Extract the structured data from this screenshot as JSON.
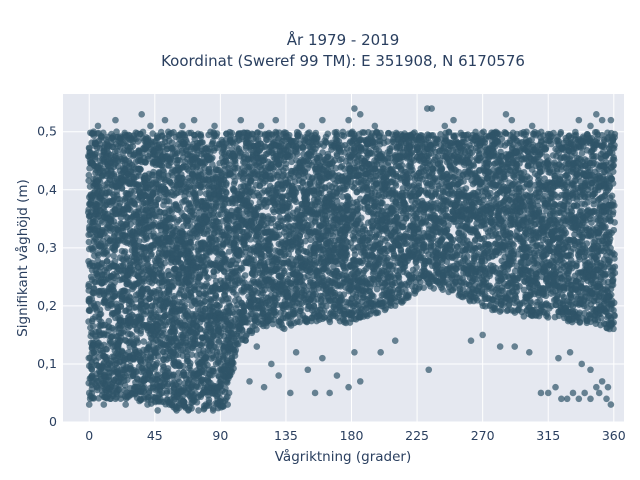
{
  "chart_data": {
    "type": "scatter",
    "title": "År 1979 - 2019",
    "subtitle": "Koordinat (Sweref 99 TM): E 351908, N 6170576",
    "xlabel": "Vågriktning (grader)",
    "ylabel": "Signifikant våghöjd (m)",
    "xlim": [
      -18,
      367
    ],
    "ylim": [
      0,
      0.565
    ],
    "xticks": [
      0,
      45,
      90,
      135,
      180,
      225,
      270,
      315,
      360
    ],
    "yticks": [
      0,
      0.1,
      0.2,
      0.3,
      0.4,
      0.5
    ],
    "ytick_labels": [
      "0",
      "0,1",
      "0,2",
      "0,3",
      "0,4",
      "0,5"
    ],
    "marker_color": "#2f5468",
    "marker_opacity": 0.7,
    "grid": true,
    "background": "#e5e8f0",
    "series": [
      {
        "envelope": {
          "x": [
            0,
            10,
            20,
            30,
            40,
            45,
            50,
            55,
            60,
            65,
            70,
            75,
            80,
            85,
            90,
            95,
            100,
            110,
            120,
            130,
            135,
            140,
            150,
            160,
            170,
            180,
            190,
            200,
            210,
            220,
            225,
            230,
            240,
            250,
            260,
            270,
            280,
            290,
            300,
            310,
            315,
            320,
            330,
            340,
            350,
            360
          ],
          "y_low": [
            0.04,
            0.04,
            0.04,
            0.04,
            0.03,
            0.03,
            0.03,
            0.03,
            0.02,
            0.02,
            0.02,
            0.02,
            0.02,
            0.02,
            0.02,
            0.03,
            0.12,
            0.15,
            0.16,
            0.16,
            0.16,
            0.17,
            0.17,
            0.17,
            0.17,
            0.17,
            0.18,
            0.19,
            0.2,
            0.21,
            0.22,
            0.23,
            0.23,
            0.22,
            0.21,
            0.2,
            0.19,
            0.19,
            0.18,
            0.18,
            0.18,
            0.18,
            0.17,
            0.17,
            0.16,
            0.16
          ],
          "y_high": [
            0.5,
            0.5,
            0.5,
            0.5,
            0.5,
            0.5,
            0.5,
            0.5,
            0.5,
            0.5,
            0.5,
            0.5,
            0.5,
            0.5,
            0.5,
            0.5,
            0.5,
            0.5,
            0.5,
            0.5,
            0.5,
            0.5,
            0.5,
            0.5,
            0.5,
            0.5,
            0.5,
            0.5,
            0.5,
            0.5,
            0.5,
            0.5,
            0.5,
            0.5,
            0.5,
            0.5,
            0.5,
            0.5,
            0.5,
            0.5,
            0.5,
            0.5,
            0.5,
            0.5,
            0.5,
            0.5
          ]
        },
        "points": [
          [
            0,
            0.03
          ],
          [
            0,
            0.05
          ],
          [
            2,
            0.08
          ],
          [
            5,
            0.12
          ],
          [
            8,
            0.15
          ],
          [
            3,
            0.5
          ],
          [
            6,
            0.51
          ],
          [
            10,
            0.03
          ],
          [
            12,
            0.06
          ],
          [
            14,
            0.1
          ],
          [
            16,
            0.13
          ],
          [
            18,
            0.04
          ],
          [
            20,
            0.07
          ],
          [
            22,
            0.09
          ],
          [
            25,
            0.03
          ],
          [
            28,
            0.05
          ],
          [
            30,
            0.08
          ],
          [
            32,
            0.12
          ],
          [
            35,
            0.04
          ],
          [
            38,
            0.06
          ],
          [
            40,
            0.03
          ],
          [
            42,
            0.08
          ],
          [
            44,
            0.1
          ],
          [
            47,
            0.02
          ],
          [
            50,
            0.05
          ],
          [
            52,
            0.07
          ],
          [
            55,
            0.03
          ],
          [
            58,
            0.12
          ],
          [
            60,
            0.02
          ],
          [
            62,
            0.05
          ],
          [
            65,
            0.08
          ],
          [
            68,
            0.02
          ],
          [
            70,
            0.04
          ],
          [
            72,
            0.07
          ],
          [
            75,
            0.02
          ],
          [
            78,
            0.05
          ],
          [
            80,
            0.03
          ],
          [
            82,
            0.09
          ],
          [
            85,
            0.02
          ],
          [
            88,
            0.06
          ],
          [
            90,
            0.04
          ],
          [
            92,
            0.08
          ],
          [
            95,
            0.03
          ],
          [
            96,
            0.05
          ],
          [
            98,
            0.1
          ],
          [
            100,
            0.12
          ],
          [
            18,
            0.52
          ],
          [
            36,
            0.53
          ],
          [
            42,
            0.51
          ],
          [
            52,
            0.52
          ],
          [
            64,
            0.51
          ],
          [
            72,
            0.52
          ],
          [
            86,
            0.51
          ],
          [
            104,
            0.52
          ],
          [
            110,
            0.07
          ],
          [
            115,
            0.13
          ],
          [
            120,
            0.06
          ],
          [
            125,
            0.1
          ],
          [
            130,
            0.08
          ],
          [
            138,
            0.05
          ],
          [
            142,
            0.12
          ],
          [
            150,
            0.09
          ],
          [
            155,
            0.05
          ],
          [
            160,
            0.11
          ],
          [
            165,
            0.05
          ],
          [
            170,
            0.08
          ],
          [
            178,
            0.06
          ],
          [
            182,
            0.12
          ],
          [
            186,
            0.07
          ],
          [
            118,
            0.51
          ],
          [
            128,
            0.52
          ],
          [
            146,
            0.51
          ],
          [
            160,
            0.52
          ],
          [
            178,
            0.52
          ],
          [
            182,
            0.54
          ],
          [
            186,
            0.53
          ],
          [
            196,
            0.51
          ],
          [
            200,
            0.12
          ],
          [
            210,
            0.14
          ],
          [
            233,
            0.09
          ],
          [
            232,
            0.54
          ],
          [
            235,
            0.54
          ],
          [
            244,
            0.51
          ],
          [
            250,
            0.52
          ],
          [
            262,
            0.14
          ],
          [
            270,
            0.15
          ],
          [
            282,
            0.13
          ],
          [
            292,
            0.13
          ],
          [
            302,
            0.12
          ],
          [
            286,
            0.53
          ],
          [
            290,
            0.52
          ],
          [
            304,
            0.51
          ],
          [
            310,
            0.05
          ],
          [
            315,
            0.05
          ],
          [
            320,
            0.06
          ],
          [
            324,
            0.04
          ],
          [
            328,
            0.04
          ],
          [
            332,
            0.05
          ],
          [
            336,
            0.04
          ],
          [
            340,
            0.05
          ],
          [
            344,
            0.04
          ],
          [
            348,
            0.06
          ],
          [
            350,
            0.05
          ],
          [
            352,
            0.07
          ],
          [
            355,
            0.04
          ],
          [
            358,
            0.03
          ],
          [
            356,
            0.06
          ],
          [
            344,
            0.09
          ],
          [
            338,
            0.1
          ],
          [
            330,
            0.12
          ],
          [
            322,
            0.11
          ],
          [
            348,
            0.53
          ],
          [
            352,
            0.52
          ],
          [
            344,
            0.51
          ],
          [
            358,
            0.52
          ],
          [
            336,
            0.52
          ]
        ]
      }
    ]
  }
}
